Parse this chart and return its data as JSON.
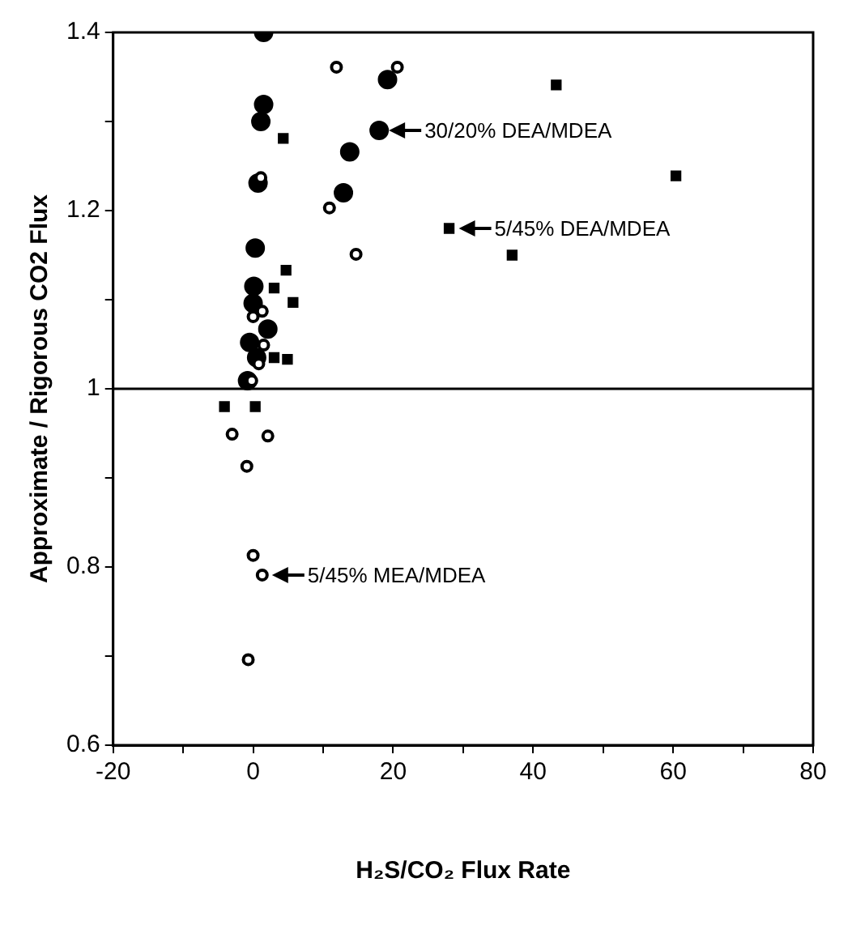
{
  "chart_data": {
    "type": "scatter",
    "xlabel": "H₂S/CO₂ Flux Rate",
    "ylabel": "Approximate / Rigorous CO2 Flux",
    "series": [
      {
        "color": "#000000",
        "marker": "circle",
        "x": [
          1.5,
          19.2,
          1.5,
          1.1,
          18.0,
          13.8,
          0.7,
          12.9,
          0.3,
          0.1,
          0,
          2.1,
          -0.5,
          0.5,
          -0.8
        ],
        "values": [
          1.4,
          1.347,
          1.319,
          1.3,
          1.29,
          1.266,
          1.231,
          1.22,
          1.158,
          1.115,
          1.096,
          1.067,
          1.052,
          1.035,
          1.009
        ]
      },
      {
        "color": "#000000",
        "marker": "circle",
        "x": [
          11.9,
          20.6,
          1.1,
          10.9,
          14.7,
          0,
          1.3,
          1.5,
          0.8,
          -0.2,
          -3.0,
          2.1,
          -0.9,
          0,
          1.3,
          -0.7
        ],
        "values": [
          1.361,
          1.361,
          1.237,
          1.203,
          1.151,
          1.081,
          1.087,
          1.049,
          1.028,
          1.009,
          0.949,
          0.947,
          0.913,
          0.813,
          0.791,
          0.696
        ]
      },
      {
        "color": "#000000",
        "marker": "square",
        "x": [
          4.3,
          4.7,
          3.0,
          5.7,
          3.0,
          4.9,
          -4.1,
          0.3,
          43.3,
          60.4,
          28.0,
          37.0
        ],
        "values": [
          1.281,
          1.133,
          1.113,
          1.097,
          1.035,
          1.033,
          0.98,
          0.98,
          1.341,
          1.239,
          1.18,
          1.15
        ]
      }
    ],
    "xlim": [
      -20,
      80
    ],
    "xticks": [
      -20,
      {
        "value": -10,
        "label": null
      },
      0,
      {
        "value": 10,
        "label": null
      },
      20,
      {
        "value": 30,
        "label": null
      },
      40,
      {
        "value": 50,
        "label": null
      },
      60,
      {
        "value": 70,
        "label": null
      },
      80
    ],
    "ylim": [
      0.6,
      1.4
    ],
    "yticks": [
      0.6,
      {
        "value": 0.7,
        "label": null
      },
      0.8,
      {
        "value": 0.9,
        "label": null
      },
      1.0,
      {
        "value": 1.1,
        "label": null
      },
      1.2,
      {
        "value": 1.3,
        "label": null
      },
      1.4
    ],
    "ref_lines": [
      {
        "axis": "y",
        "value": 1.0,
        "color": "#000000"
      }
    ],
    "annotations": [
      {
        "text": "30/20% DEA/MDEA",
        "x": 18.0,
        "y": 1.29
      },
      {
        "text": "5/45% DEA/MDEA",
        "x": 28.0,
        "y": 1.18
      },
      {
        "text": "5/45% MEA/MDEA",
        "x": 1.3,
        "y": 0.791
      }
    ],
    "grid": false,
    "legend": false
  }
}
